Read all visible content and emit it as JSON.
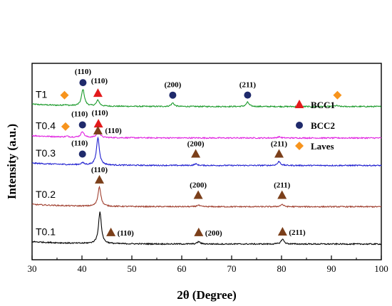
{
  "chart_data": {
    "type": "line",
    "xlabel": "2θ (Degree)",
    "ylabel": "Intensity (a.u.)",
    "xlim": [
      30,
      100
    ],
    "xticks": [
      30,
      40,
      50,
      60,
      70,
      80,
      90,
      100
    ],
    "grid": false,
    "legend_position": "top-right",
    "legend": [
      {
        "label": "BCC1",
        "marker": "triangle",
        "color": "#e31a1c"
      },
      {
        "label": "BCC2",
        "marker": "circle",
        "color": "#1f2a6b"
      },
      {
        "label": "Laves",
        "marker": "diamond",
        "color": "#f7941d"
      }
    ],
    "series": [
      {
        "name": "T1",
        "color": "#1a9a2a",
        "baseline": 0.78,
        "peaks": [
          [
            36.5,
            0.005
          ],
          [
            40.2,
            0.085
          ],
          [
            43.2,
            0.03
          ],
          [
            58.2,
            0.018
          ],
          [
            73.2,
            0.022
          ],
          [
            91,
            0.005
          ]
        ],
        "markers": [
          {
            "x": 36.5,
            "shape": "diamond",
            "color": "#f7941d"
          },
          {
            "x": 40.2,
            "shape": "circle",
            "color": "#1f2a6b",
            "label": "(110)"
          },
          {
            "x": 43.2,
            "shape": "triangle",
            "color": "#e31a1c",
            "label": "(110)"
          },
          {
            "x": 58.2,
            "shape": "circle",
            "color": "#1f2a6b",
            "label": "(200)"
          },
          {
            "x": 73.2,
            "shape": "circle",
            "color": "#1f2a6b",
            "label": "(211)"
          },
          {
            "x": 91.2,
            "shape": "diamond",
            "color": "#f7941d"
          }
        ]
      },
      {
        "name": "T0.4",
        "color": "#e020e0",
        "baseline": 0.62,
        "peaks": [
          [
            37,
            0.004
          ],
          [
            40.1,
            0.03
          ],
          [
            43.3,
            0.035
          ],
          [
            79.5,
            0.006
          ]
        ],
        "markers": [
          {
            "x": 36.7,
            "shape": "diamond",
            "color": "#f7941d"
          },
          {
            "x": 40.1,
            "shape": "circle",
            "color": "#1f2a6b",
            "label": "(110)"
          },
          {
            "x": 43.3,
            "shape": "triangle",
            "color": "#e31a1c",
            "label": "(110)"
          }
        ]
      },
      {
        "name": "T0.3",
        "color": "#2020d0",
        "baseline": 0.48,
        "peaks": [
          [
            40.1,
            0.01
          ],
          [
            43.2,
            0.14
          ],
          [
            62.8,
            0.008
          ],
          [
            79.5,
            0.02
          ]
        ],
        "markers": [
          {
            "x": 40.1,
            "shape": "circle",
            "color": "#1f2a6b",
            "label": "(110)"
          },
          {
            "x": 43.2,
            "shape": "triangle",
            "color": "#7b3f1a",
            "label": "(110)"
          },
          {
            "x": 62.8,
            "shape": "triangle",
            "color": "#7b3f1a",
            "label": "(200)"
          },
          {
            "x": 79.5,
            "shape": "triangle",
            "color": "#7b3f1a",
            "label": "(211)"
          }
        ]
      },
      {
        "name": "T0.2",
        "color": "#a04030",
        "baseline": 0.27,
        "peaks": [
          [
            43.5,
            0.1
          ],
          [
            63.3,
            0.008
          ],
          [
            80.1,
            0.012
          ]
        ],
        "markers": [
          {
            "x": 43.5,
            "shape": "triangle",
            "color": "#7b3f1a",
            "label": "(110)"
          },
          {
            "x": 63.3,
            "shape": "triangle",
            "color": "#7b3f1a",
            "label": "(200)"
          },
          {
            "x": 80.1,
            "shape": "triangle",
            "color": "#7b3f1a",
            "label": "(211)"
          }
        ]
      },
      {
        "name": "T0.1",
        "color": "#000000",
        "baseline": 0.08,
        "peaks": [
          [
            43.6,
            0.16
          ],
          [
            63.4,
            0.012
          ],
          [
            80.2,
            0.025
          ]
        ],
        "markers": [
          {
            "x": 45.8,
            "shape": "triangle",
            "color": "#7b3f1a",
            "label": "(110)"
          },
          {
            "x": 63.4,
            "shape": "triangle",
            "color": "#7b3f1a",
            "label": "(200)"
          },
          {
            "x": 80.2,
            "shape": "triangle",
            "color": "#7b3f1a",
            "label": "(211)"
          }
        ]
      }
    ]
  }
}
